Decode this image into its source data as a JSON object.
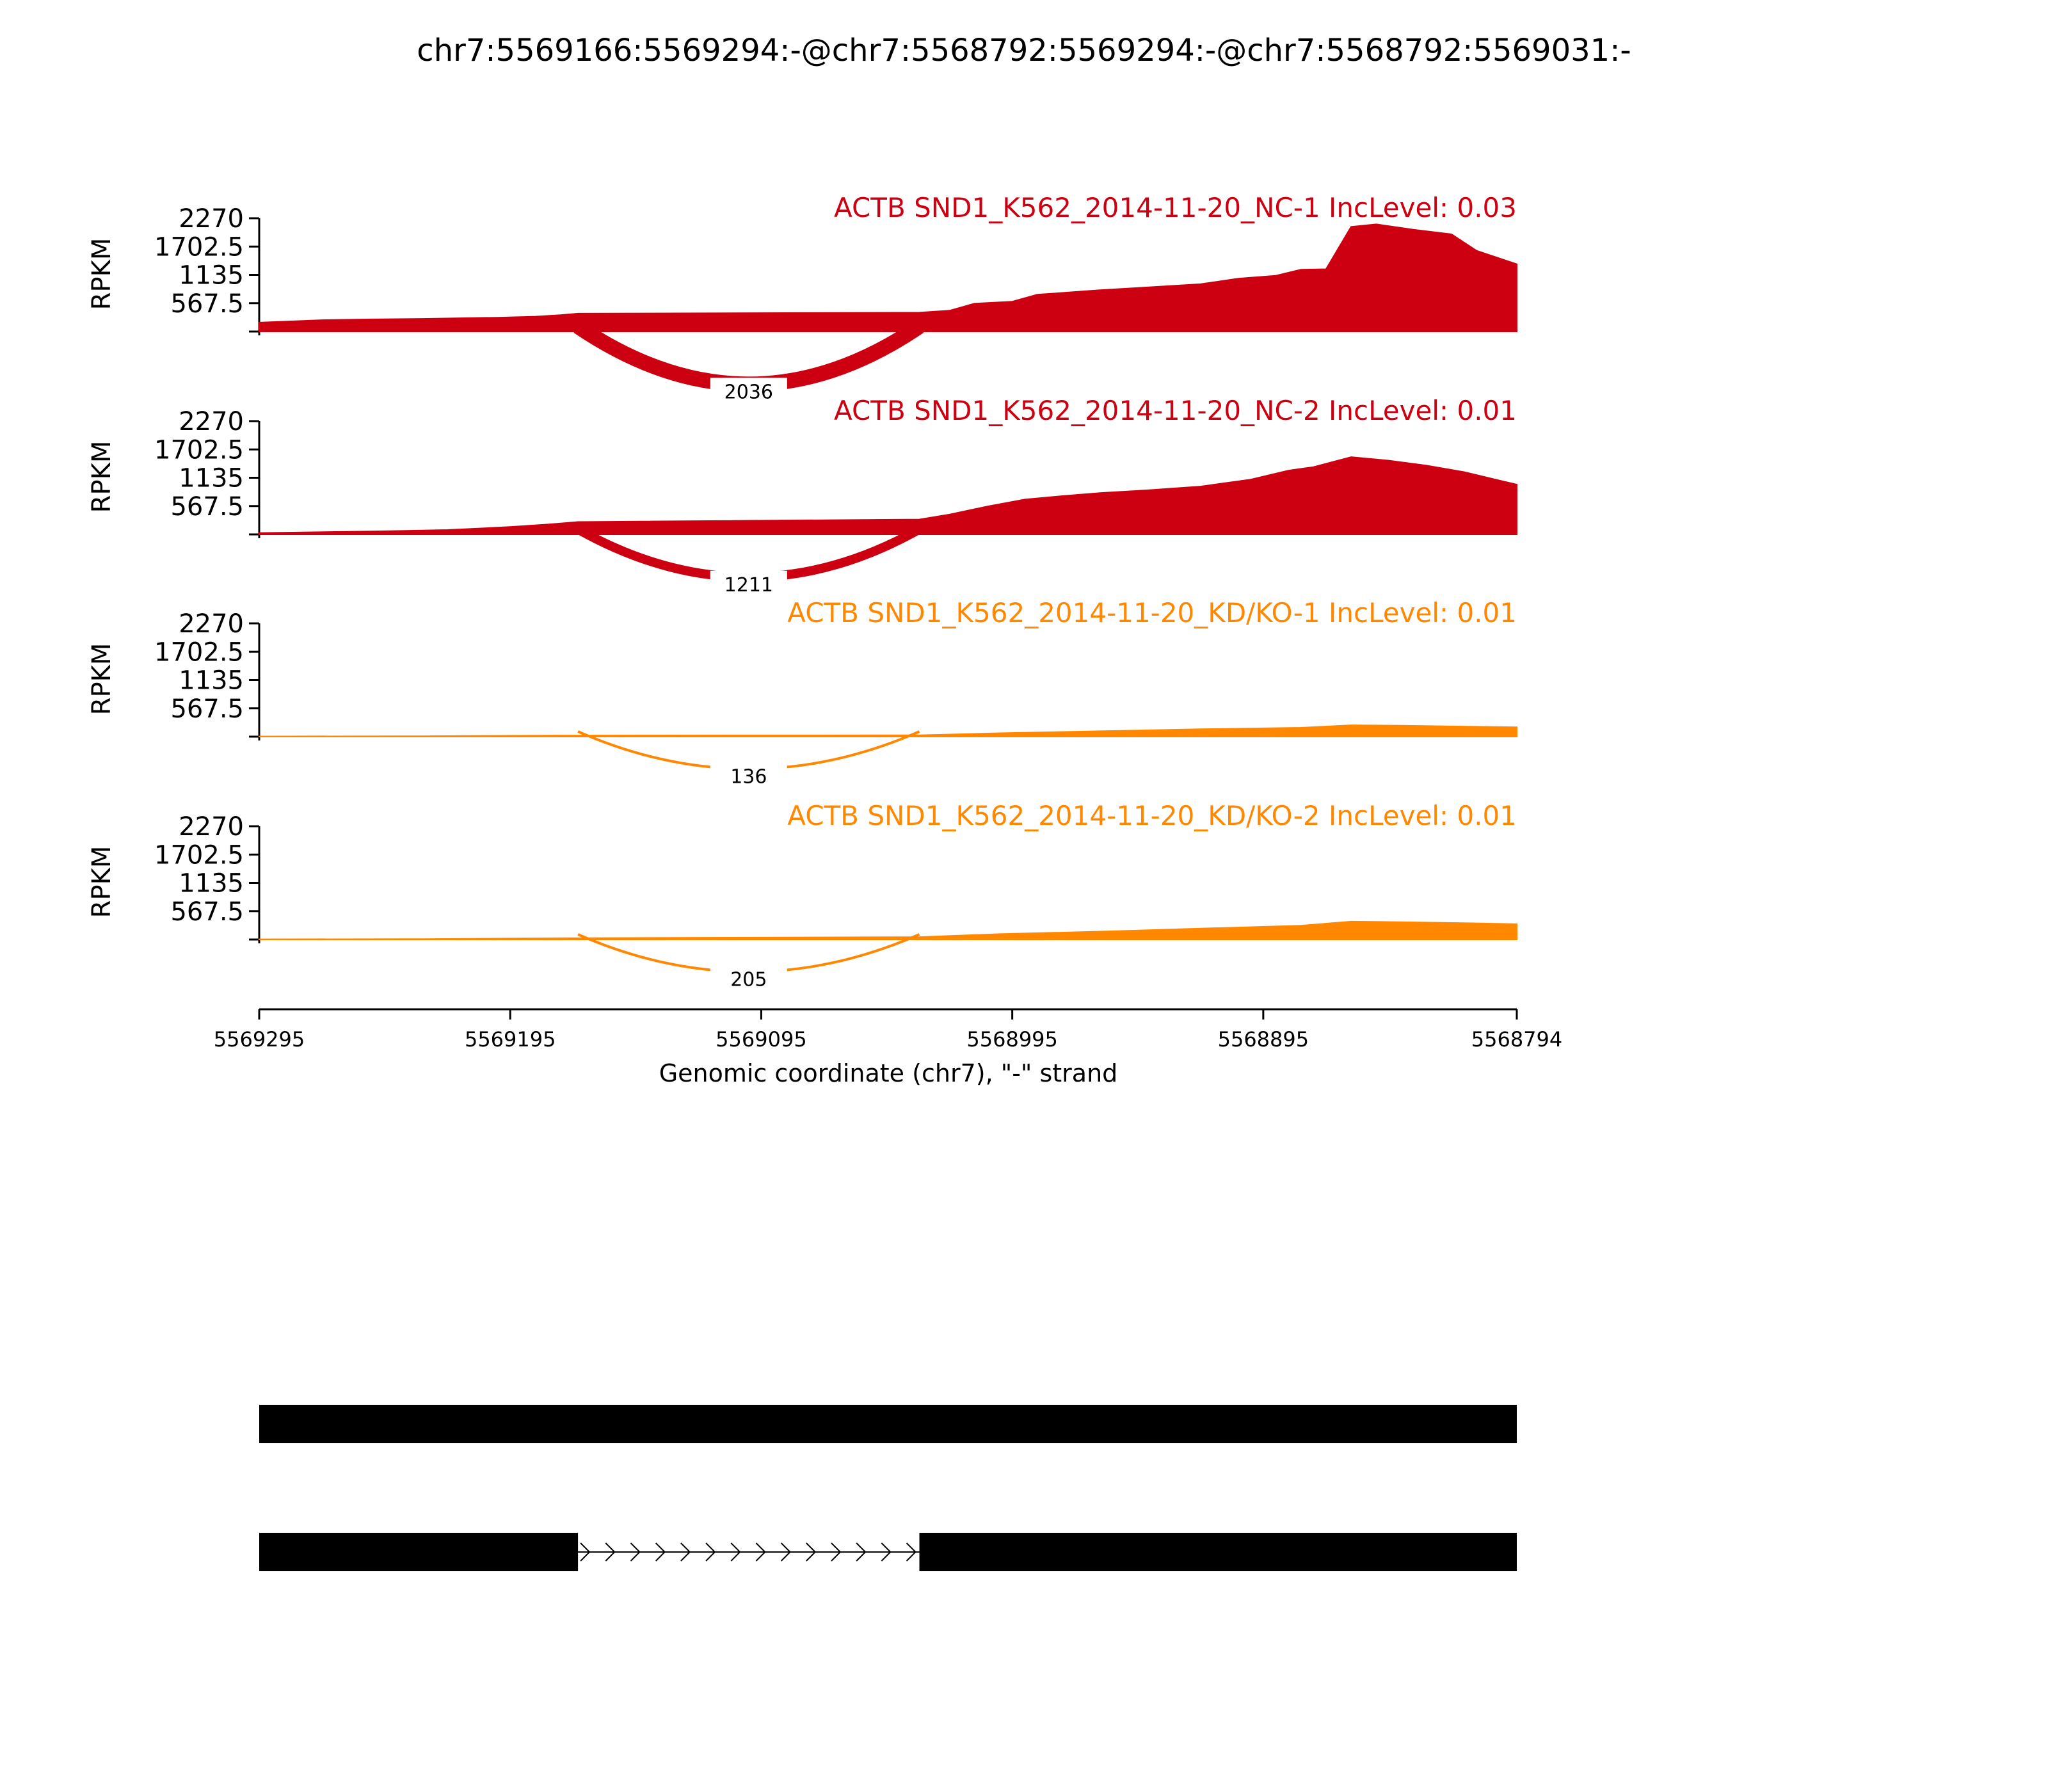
{
  "chart_data": {
    "type": "area",
    "title": "chr7:5569166:5569294:-@chr7:5568792:5569294:-@chr7:5568792:5569031:-",
    "xlabel": "Genomic coordinate (chr7), \"-\" strand",
    "ylabel": "RPKM",
    "xlim": [
      5569295,
      5568794
    ],
    "x_ticks": [
      "5569295",
      "5569195",
      "5569095",
      "5568995",
      "5568895",
      "5568794"
    ],
    "y_ticks": [
      "2270",
      "1702.5",
      "1135",
      "567.5"
    ],
    "ylim": [
      0,
      2270
    ],
    "junction": {
      "start": 5569168,
      "end": 5569032
    },
    "tracks": [
      {
        "label": "ACTB SND1_K562_2014-11-20_NC-1 IncLevel: 0.03",
        "color": "#cc0011",
        "junction_reads": "2036",
        "coverage": [
          [
            5569295,
            180
          ],
          [
            5569270,
            230
          ],
          [
            5569250,
            245
          ],
          [
            5569230,
            255
          ],
          [
            5569200,
            280
          ],
          [
            5569185,
            300
          ],
          [
            5569175,
            330
          ],
          [
            5569168,
            360
          ],
          [
            5569032,
            380
          ],
          [
            5569020,
            420
          ],
          [
            5569010,
            560
          ],
          [
            5568995,
            600
          ],
          [
            5568985,
            740
          ],
          [
            5568960,
            830
          ],
          [
            5568940,
            890
          ],
          [
            5568920,
            950
          ],
          [
            5568905,
            1060
          ],
          [
            5568890,
            1120
          ],
          [
            5568880,
            1240
          ],
          [
            5568870,
            1250
          ],
          [
            5568860,
            2100
          ],
          [
            5568850,
            2150
          ],
          [
            5568835,
            2040
          ],
          [
            5568820,
            1950
          ],
          [
            5568810,
            1620
          ],
          [
            5568794,
            1350
          ]
        ]
      },
      {
        "label": "ACTB SND1_K562_2014-11-20_NC-2 IncLevel: 0.01",
        "color": "#cc0011",
        "junction_reads": "1211",
        "coverage": [
          [
            5569295,
            30
          ],
          [
            5569250,
            60
          ],
          [
            5569220,
            90
          ],
          [
            5569195,
            150
          ],
          [
            5569180,
            200
          ],
          [
            5569168,
            250
          ],
          [
            5569032,
            300
          ],
          [
            5569020,
            400
          ],
          [
            5569005,
            560
          ],
          [
            5568990,
            700
          ],
          [
            5568975,
            770
          ],
          [
            5568960,
            830
          ],
          [
            5568940,
            890
          ],
          [
            5568920,
            960
          ],
          [
            5568900,
            1100
          ],
          [
            5568885,
            1280
          ],
          [
            5568875,
            1350
          ],
          [
            5568860,
            1550
          ],
          [
            5568845,
            1480
          ],
          [
            5568830,
            1380
          ],
          [
            5568815,
            1250
          ],
          [
            5568800,
            1070
          ],
          [
            5568794,
            1000
          ]
        ]
      },
      {
        "label": "ACTB SND1_K562_2014-11-20_KD/KO-1 IncLevel: 0.01",
        "color": "#ff8800",
        "junction_reads": "136",
        "coverage": [
          [
            5569295,
            5
          ],
          [
            5569230,
            10
          ],
          [
            5569190,
            20
          ],
          [
            5569168,
            25
          ],
          [
            5569032,
            30
          ],
          [
            5569000,
            70
          ],
          [
            5568960,
            110
          ],
          [
            5568920,
            150
          ],
          [
            5568880,
            180
          ],
          [
            5568860,
            230
          ],
          [
            5568840,
            220
          ],
          [
            5568810,
            200
          ],
          [
            5568794,
            190
          ]
        ]
      },
      {
        "label": "ACTB SND1_K562_2014-11-20_KD/KO-2 IncLevel: 0.01",
        "color": "#ff8800",
        "junction_reads": "205",
        "coverage": [
          [
            5569295,
            5
          ],
          [
            5569230,
            10
          ],
          [
            5569190,
            25
          ],
          [
            5569168,
            30
          ],
          [
            5569032,
            50
          ],
          [
            5569000,
            110
          ],
          [
            5568960,
            160
          ],
          [
            5568920,
            220
          ],
          [
            5568880,
            280
          ],
          [
            5568860,
            360
          ],
          [
            5568840,
            350
          ],
          [
            5568815,
            330
          ],
          [
            5568794,
            310
          ]
        ]
      }
    ],
    "isoforms": [
      {
        "exons": [
          [
            5569295,
            5568794
          ]
        ]
      },
      {
        "exons": [
          [
            5569295,
            5569168
          ],
          [
            5569032,
            5568794
          ]
        ]
      }
    ]
  }
}
